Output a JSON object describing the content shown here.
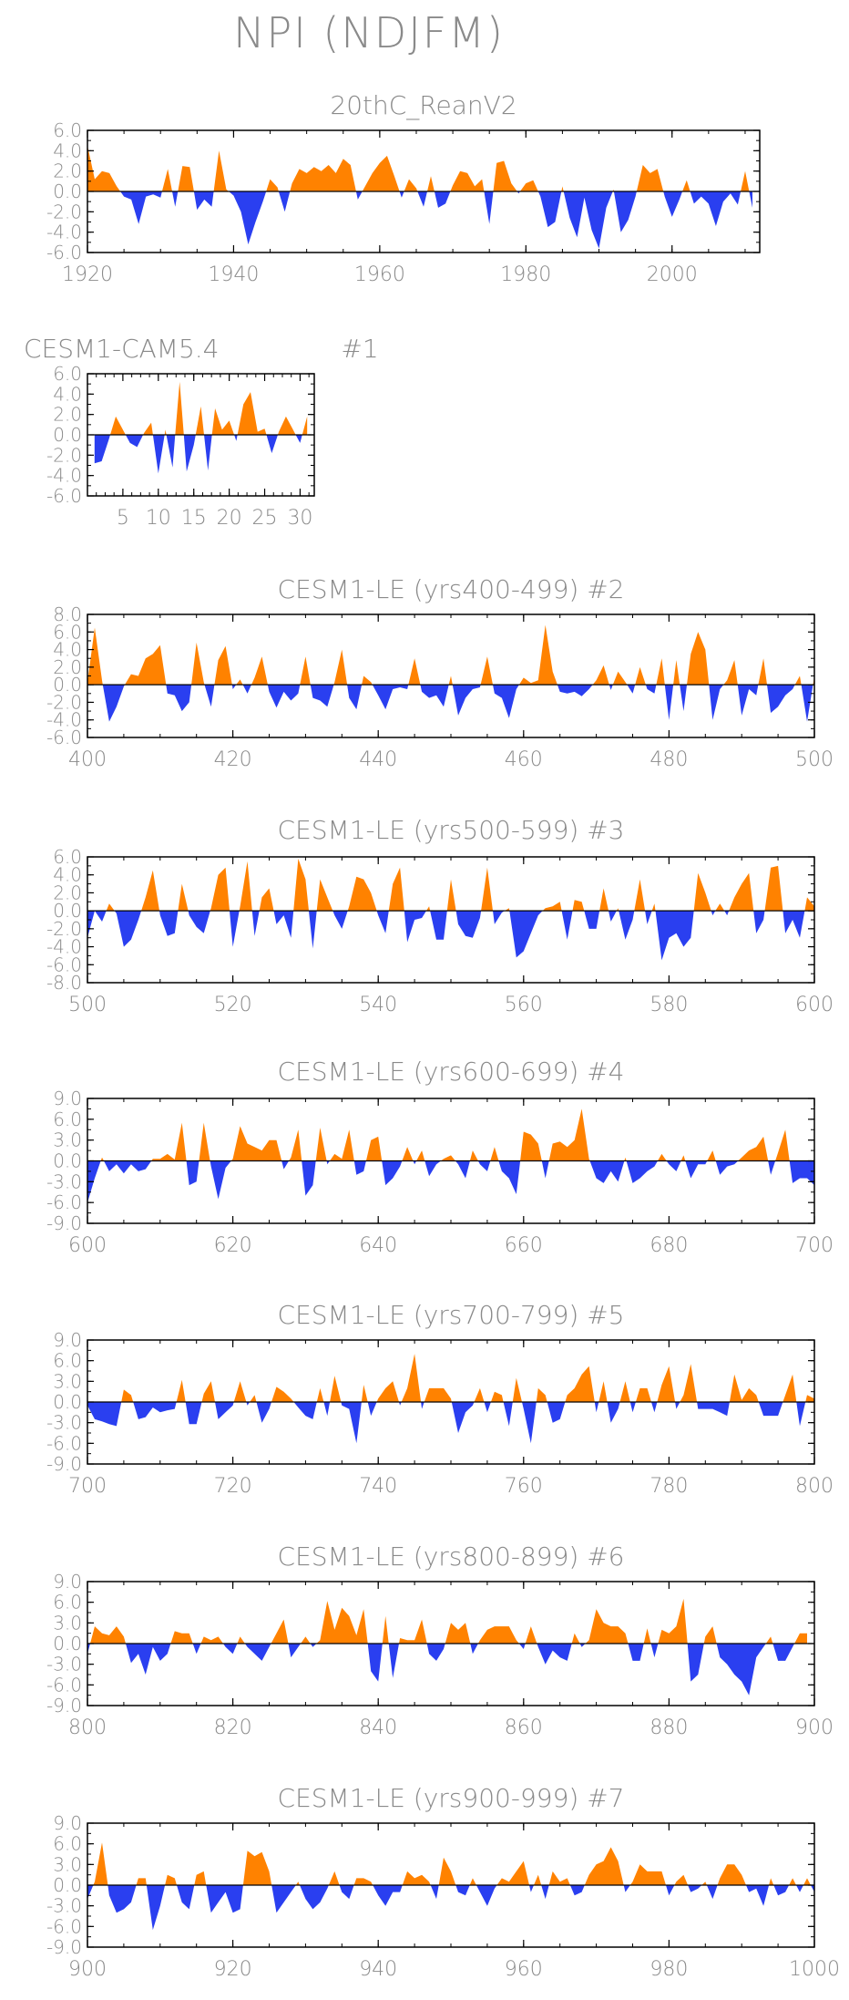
{
  "page_title": "NPI (NDJFM)",
  "colors": {
    "positive": "#ff8200",
    "negative": "#2a3ff0",
    "text": "#8a8a8a",
    "axis": "#000000"
  },
  "chart_data": [
    {
      "type": "area",
      "title": "20thC_ReanV2",
      "xlim": [
        1920,
        2012
      ],
      "ylim": [
        -6,
        6
      ],
      "yticks": [
        6,
        4,
        2,
        0,
        -2,
        -4,
        -6
      ],
      "ytick_labels": [
        "6.0",
        "4.0",
        "2.0",
        "0.0",
        "-2.0",
        "-4.0",
        "-6.0"
      ],
      "xticks": [
        1920,
        1940,
        1960,
        1980,
        2000
      ],
      "xtick_labels": [
        "1920",
        "1940",
        "1960",
        "1980",
        "2000"
      ],
      "x_start": 1920,
      "values": [
        4.5,
        1.2,
        2.0,
        1.8,
        0.5,
        -0.5,
        -0.8,
        -3.2,
        -0.5,
        -0.3,
        -0.6,
        2.2,
        -1.5,
        2.5,
        2.4,
        -1.8,
        -0.8,
        -1.5,
        4.0,
        0.2,
        -0.4,
        -2.0,
        -5.2,
        -3.0,
        -1.0,
        1.2,
        0.4,
        -2.0,
        0.8,
        2.2,
        1.8,
        2.4,
        2.0,
        2.6,
        1.8,
        3.2,
        2.6,
        -0.8,
        0.5,
        1.8,
        2.8,
        3.5,
        1.5,
        -0.6,
        1.2,
        0.3,
        -1.5,
        1.5,
        -1.6,
        -1.2,
        0.6,
        2.0,
        1.8,
        0.5,
        1.2,
        -3.2,
        2.8,
        3.0,
        0.8,
        -0.2,
        0.8,
        1.1,
        -0.5,
        -3.5,
        -3.0,
        0.5,
        -2.6,
        -4.5,
        -0.6,
        -3.8,
        -5.6,
        -1.6,
        0.2,
        -4.0,
        -2.8,
        -0.5,
        2.6,
        1.8,
        2.2,
        -0.5,
        -2.5,
        -0.8,
        1.1,
        -1.2,
        -0.5,
        -1.2,
        -3.4,
        -1.0,
        -0.2,
        -1.3,
        2.0,
        -1.6
      ]
    },
    {
      "type": "area",
      "title": "CESM1-CAM5.4",
      "label": "#1",
      "xlim": [
        0,
        32
      ],
      "ylim": [
        -6,
        6
      ],
      "yticks": [
        6,
        4,
        2,
        0,
        -2,
        -4,
        -6
      ],
      "ytick_labels": [
        "6.0",
        "4.0",
        "2.0",
        "0.0",
        "-2.0",
        "-4.0",
        "-6.0"
      ],
      "xticks": [
        5,
        10,
        15,
        20,
        25,
        30
      ],
      "xtick_labels": [
        "5",
        "10",
        "15",
        "20",
        "25",
        "30"
      ],
      "x_start": 1,
      "values": [
        -2.8,
        -2.6,
        -0.5,
        1.8,
        0.5,
        -0.8,
        -1.2,
        0.2,
        1.2,
        -3.8,
        0.5,
        -3.2,
        5.2,
        -3.6,
        -1.0,
        2.8,
        -3.5,
        2.6,
        0.5,
        1.4,
        -0.6,
        3.0,
        4.2,
        0.3,
        0.6,
        -1.8,
        0.3,
        1.8,
        0.5,
        -0.8,
        1.8
      ]
    },
    {
      "type": "area",
      "title": "CESM1-LE (yrs400-499) #2",
      "xlim": [
        400,
        500
      ],
      "ylim": [
        -6,
        8
      ],
      "yticks": [
        8,
        6,
        4,
        2,
        0,
        -2,
        -4,
        -6
      ],
      "ytick_labels": [
        "8.0",
        "6.0",
        "4.0",
        "2.0",
        "0.0",
        "-2.0",
        "-4.0",
        "-6.0"
      ],
      "xticks": [
        400,
        420,
        440,
        460,
        480,
        500
      ],
      "xtick_labels": [
        "400",
        "420",
        "440",
        "460",
        "480",
        "500"
      ],
      "x_start": 400,
      "values": [
        0.3,
        6.5,
        0.5,
        -4.2,
        -2.5,
        -0.2,
        1.2,
        1.0,
        3.0,
        3.5,
        4.5,
        -1.0,
        -1.2,
        -3.0,
        -2.0,
        4.8,
        0.3,
        -2.5,
        2.8,
        4.4,
        -0.5,
        0.6,
        -1.0,
        0.8,
        3.2,
        -0.8,
        -2.6,
        -0.8,
        -1.8,
        -1.0,
        3.2,
        -1.5,
        -1.8,
        -2.5,
        0.3,
        4.0,
        -1.5,
        -2.8,
        1.0,
        0.3,
        -1.2,
        -2.8,
        -0.5,
        -0.3,
        -0.5,
        3.0,
        -0.8,
        -1.5,
        -1.2,
        -2.5,
        1.0,
        -3.5,
        -1.5,
        -0.5,
        -0.3,
        3.2,
        -1.0,
        -1.5,
        -3.8,
        -0.5,
        0.8,
        0.2,
        0.5,
        6.8,
        1.5,
        -0.8,
        -1.0,
        -0.8,
        -1.3,
        -0.5,
        0.5,
        2.2,
        -0.6,
        1.5,
        0.3,
        -1.0,
        2.0,
        -0.5,
        -1.0,
        3.0,
        -4.0,
        2.8,
        -3.0,
        3.5,
        6.0,
        4.0,
        -4.0,
        -0.5,
        0.5,
        2.8,
        -3.5,
        -0.5,
        -1.2,
        3.0,
        -3.2,
        -2.5,
        -1.2,
        -0.5,
        1.0,
        -4.2,
        1.0
      ]
    },
    {
      "type": "area",
      "title": "CESM1-LE (yrs500-599) #3",
      "xlim": [
        500,
        600
      ],
      "ylim": [
        -8,
        6
      ],
      "yticks": [
        6,
        4,
        2,
        0,
        -2,
        -4,
        -6,
        -8
      ],
      "ytick_labels": [
        "6.0",
        "4.0",
        "2.0",
        "0.0",
        "-2.0",
        "-4.0",
        "-6.0",
        "-8.0"
      ],
      "xticks": [
        500,
        520,
        540,
        560,
        580,
        600
      ],
      "xtick_labels": [
        "500",
        "520",
        "540",
        "560",
        "580",
        "600"
      ],
      "x_start": 500,
      "values": [
        -3.0,
        0.0,
        -1.2,
        0.8,
        -0.3,
        -4.0,
        -3.2,
        -1.0,
        1.5,
        4.5,
        -0.5,
        -2.8,
        -2.5,
        3.0,
        -0.5,
        -1.8,
        -2.5,
        0.3,
        4.0,
        4.8,
        -4.0,
        0.5,
        5.5,
        -2.8,
        1.5,
        2.5,
        -1.5,
        -0.5,
        -3.0,
        5.8,
        3.5,
        -4.2,
        3.5,
        1.5,
        -0.5,
        -2.0,
        0.5,
        3.8,
        3.5,
        2.0,
        -0.5,
        -2.5,
        3.0,
        4.8,
        -3.5,
        -1.0,
        -0.8,
        0.5,
        -3.2,
        -3.2,
        3.5,
        -1.5,
        -2.8,
        -3.0,
        -0.8,
        4.8,
        -1.5,
        -0.2,
        0.3,
        -5.2,
        -4.5,
        -2.5,
        -0.5,
        0.3,
        0.5,
        1.0,
        -3.2,
        1.2,
        1.0,
        -2.0,
        -2.0,
        2.5,
        -1.2,
        0.3,
        -3.2,
        -1.0,
        3.5,
        -1.5,
        0.8,
        -5.5,
        -3.0,
        -2.5,
        -4.0,
        -3.0,
        4.2,
        2.0,
        -0.5,
        0.8,
        -0.5,
        1.5,
        3.0,
        4.2,
        -2.5,
        -1.0,
        4.8,
        5.0,
        -2.5,
        -1.0,
        -3.0,
        1.5,
        0.5
      ]
    },
    {
      "type": "area",
      "title": "CESM1-LE (yrs600-699) #4",
      "xlim": [
        600,
        700
      ],
      "ylim": [
        -9,
        9
      ],
      "yticks": [
        9,
        6,
        3,
        0,
        -3,
        -6,
        -9
      ],
      "ytick_labels": [
        "9.0",
        "6.0",
        "3.0",
        "0.0",
        "-3.0",
        "-6.0",
        "-9.0"
      ],
      "xticks": [
        600,
        620,
        640,
        660,
        680,
        700
      ],
      "xtick_labels": [
        "600",
        "620",
        "640",
        "660",
        "680",
        "700"
      ],
      "x_start": 600,
      "values": [
        -6.0,
        -2.5,
        0.5,
        -1.5,
        -0.5,
        -1.8,
        -0.5,
        -1.5,
        -1.2,
        0.3,
        0.3,
        1.0,
        0.2,
        5.5,
        -3.5,
        -3.0,
        5.5,
        -0.8,
        -5.5,
        -1.0,
        0.3,
        5.0,
        2.5,
        2.0,
        1.5,
        3.0,
        3.0,
        -1.2,
        0.5,
        4.5,
        -5.0,
        -3.5,
        4.8,
        -0.5,
        1.0,
        0.3,
        4.5,
        -2.0,
        -1.5,
        3.0,
        3.5,
        -3.5,
        -2.5,
        -0.8,
        2.0,
        -0.5,
        1.5,
        -2.2,
        -0.5,
        0.3,
        0.8,
        -0.5,
        -2.5,
        1.5,
        -0.5,
        -1.5,
        2.0,
        -1.5,
        -2.5,
        -4.8,
        4.2,
        3.8,
        2.5,
        -2.5,
        2.5,
        2.8,
        2.0,
        3.0,
        7.5,
        0.3,
        -2.5,
        -3.2,
        -1.5,
        -3.0,
        0.5,
        -3.2,
        -2.5,
        -1.5,
        -0.8,
        1.0,
        -0.5,
        -1.5,
        0.8,
        -2.5,
        -0.5,
        -0.5,
        1.5,
        -2.0,
        -0.8,
        -0.5,
        0.5,
        1.5,
        2.0,
        3.5,
        -2.0,
        1.2,
        4.5,
        -3.2,
        -2.5,
        -2.5,
        -3.5
      ]
    },
    {
      "type": "area",
      "title": "CESM1-LE (yrs700-799) #5",
      "xlim": [
        700,
        800
      ],
      "ylim": [
        -9,
        9
      ],
      "yticks": [
        9,
        6,
        3,
        0,
        -3,
        -6,
        -9
      ],
      "ytick_labels": [
        "9.0",
        "6.0",
        "3.0",
        "0.0",
        "-3.0",
        "-6.0",
        "-9.0"
      ],
      "xticks": [
        700,
        720,
        740,
        760,
        780,
        800
      ],
      "xtick_labels": [
        "700",
        "720",
        "740",
        "760",
        "780",
        "800"
      ],
      "x_start": 700,
      "values": [
        -0.5,
        -2.5,
        -2.8,
        -3.2,
        -3.5,
        1.8,
        1.0,
        -2.5,
        -2.2,
        -0.8,
        -1.5,
        -1.2,
        -1.0,
        3.2,
        -3.2,
        -3.2,
        1.2,
        3.0,
        -2.5,
        -1.5,
        -0.5,
        3.0,
        -0.5,
        1.0,
        -3.0,
        -1.0,
        2.2,
        1.5,
        0.5,
        -0.8,
        -2.0,
        -2.5,
        2.0,
        -2.0,
        3.8,
        -0.5,
        -1.0,
        -6.0,
        2.5,
        -2.0,
        0.5,
        2.0,
        3.0,
        -0.5,
        2.0,
        7.0,
        -1.0,
        2.0,
        2.0,
        2.0,
        0.5,
        -4.5,
        -1.5,
        -0.5,
        2.0,
        -1.5,
        1.5,
        1.0,
        -3.5,
        3.5,
        -1.0,
        -6.0,
        2.0,
        1.0,
        -3.0,
        -2.5,
        1.0,
        2.0,
        4.0,
        5.2,
        -1.5,
        3.0,
        -3.0,
        -1.0,
        3.0,
        -1.5,
        2.0,
        2.0,
        -1.5,
        2.5,
        5.2,
        -1.0,
        1.0,
        5.5,
        -1.0,
        -1.0,
        -1.0,
        -1.5,
        -2.0,
        4.0,
        0.3,
        2.0,
        1.0,
        -2.0,
        -2.0,
        -2.0,
        1.0,
        4.0,
        -3.5,
        1.0,
        0.5
      ]
    },
    {
      "type": "area",
      "title": "CESM1-LE (yrs800-899) #6",
      "xlim": [
        800,
        900
      ],
      "ylim": [
        -9,
        9
      ],
      "yticks": [
        9,
        6,
        3,
        0,
        -3,
        -6,
        -9
      ],
      "ytick_labels": [
        "9.0",
        "6.0",
        "3.0",
        "0.0",
        "-3.0",
        "-6.0",
        "-9.0"
      ],
      "xticks": [
        800,
        820,
        840,
        860,
        880,
        900
      ],
      "xtick_labels": [
        "800",
        "820",
        "840",
        "860",
        "880",
        "900"
      ],
      "x_start": 800,
      "values": [
        -1.5,
        2.5,
        1.5,
        1.2,
        2.5,
        1.0,
        -2.8,
        -1.5,
        -4.5,
        -0.5,
        -2.5,
        -1.5,
        1.8,
        1.5,
        1.5,
        -1.5,
        1.0,
        0.5,
        1.0,
        -0.5,
        -1.5,
        1.0,
        -0.5,
        -1.5,
        -2.5,
        -0.5,
        1.5,
        3.5,
        -2.0,
        -0.5,
        1.0,
        -0.5,
        0.5,
        6.2,
        2.0,
        5.2,
        4.0,
        1.2,
        5.0,
        -4.0,
        -5.5,
        4.0,
        -5.0,
        0.8,
        0.5,
        0.5,
        3.5,
        -1.5,
        -2.5,
        -0.8,
        3.0,
        2.0,
        3.0,
        -1.5,
        0.5,
        2.0,
        2.5,
        2.5,
        2.5,
        0.5,
        -0.8,
        2.5,
        -0.5,
        -3.0,
        -1.0,
        -2.0,
        -2.5,
        1.5,
        -0.5,
        0.5,
        5.0,
        3.0,
        2.5,
        2.5,
        1.5,
        -2.5,
        -2.5,
        2.2,
        -2.0,
        2.0,
        1.5,
        2.5,
        6.5,
        -5.5,
        -4.5,
        1.0,
        2.5,
        -2.0,
        -3.0,
        -4.5,
        -5.5,
        -7.5,
        -2.0,
        -0.5,
        1.0,
        -2.5,
        -2.5,
        -0.5,
        1.5,
        1.5
      ]
    },
    {
      "type": "area",
      "title": "CESM1-LE (yrs900-999) #7",
      "xlim": [
        900,
        1000
      ],
      "ylim": [
        -9,
        9
      ],
      "yticks": [
        9,
        6,
        3,
        0,
        -3,
        -6,
        -9
      ],
      "ytick_labels": [
        "9.0",
        "6.0",
        "3.0",
        "0.0",
        "-3.0",
        "-6.0",
        "-9.0"
      ],
      "xticks": [
        900,
        920,
        940,
        960,
        980,
        1000
      ],
      "xtick_labels": [
        "900",
        "920",
        "940",
        "960",
        "980",
        "1000"
      ],
      "x_start": 900,
      "values": [
        -2.0,
        0.5,
        6.2,
        -1.5,
        -4.0,
        -3.5,
        -2.5,
        1.0,
        1.0,
        -6.5,
        -3.0,
        1.5,
        1.0,
        -2.5,
        -3.5,
        1.5,
        2.0,
        -4.0,
        -2.5,
        -1.0,
        -4.0,
        -3.5,
        5.0,
        4.2,
        4.8,
        2.0,
        -4.0,
        -2.5,
        -1.0,
        0.5,
        -2.0,
        -3.5,
        -2.5,
        -0.5,
        2.0,
        -1.0,
        -2.0,
        1.0,
        1.0,
        0.5,
        -1.5,
        -3.0,
        -1.0,
        -1.0,
        2.0,
        1.0,
        1.5,
        0.5,
        -2.0,
        4.0,
        2.0,
        -1.0,
        -1.5,
        1.0,
        -1.0,
        -3.0,
        -0.5,
        1.0,
        0.5,
        2.0,
        3.5,
        -1.0,
        1.5,
        -2.0,
        2.0,
        0.5,
        1.0,
        -1.5,
        -1.0,
        1.5,
        3.0,
        3.5,
        5.5,
        3.5,
        -1.0,
        0.5,
        3.0,
        2.0,
        2.0,
        2.0,
        -1.5,
        0.5,
        1.5,
        -1.0,
        -0.5,
        0.5,
        -2.0,
        1.0,
        3.0,
        3.0,
        1.5,
        -1.0,
        -0.5,
        -3.0,
        1.0,
        -1.5,
        -1.0,
        1.0,
        -1.0,
        1.0,
        -1.0
      ]
    }
  ]
}
